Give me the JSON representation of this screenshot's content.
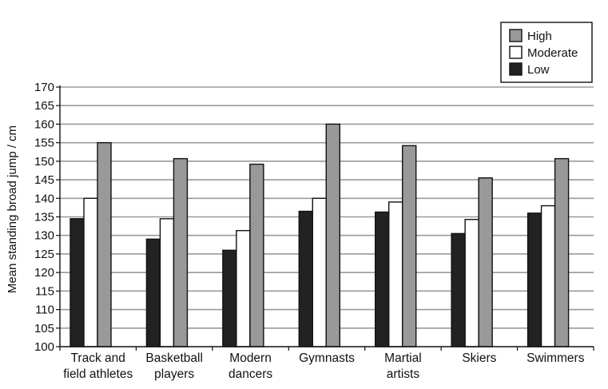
{
  "chart_data": {
    "type": "bar",
    "title": "",
    "xlabel": "",
    "ylabel": "Mean standing broad jump / cm",
    "ylim": [
      100,
      170
    ],
    "yticks": [
      100,
      105,
      110,
      115,
      120,
      125,
      130,
      135,
      140,
      145,
      150,
      155,
      160,
      165,
      170
    ],
    "grid": true,
    "legend_position": "top-right",
    "categories": [
      [
        "Track and",
        "field athletes"
      ],
      [
        "Basketball",
        "players"
      ],
      [
        "Modern",
        "dancers"
      ],
      [
        "Gymnasts"
      ],
      [
        "Martial",
        "artists"
      ],
      [
        "Skiers"
      ],
      [
        "Swimmers"
      ]
    ],
    "series": [
      {
        "name": "Low",
        "color": "#222222",
        "values": [
          134.5,
          129,
          126,
          136.5,
          136.3,
          130.5,
          136
        ]
      },
      {
        "name": "Moderate",
        "color": "#ffffff",
        "values": [
          140,
          134.5,
          131.3,
          140,
          139,
          134.3,
          138
        ]
      },
      {
        "name": "High",
        "color": "#999999",
        "values": [
          155,
          150.7,
          149.2,
          160,
          154.2,
          145.5,
          150.7
        ]
      }
    ],
    "legend_order": [
      "High",
      "Moderate",
      "Low"
    ]
  }
}
